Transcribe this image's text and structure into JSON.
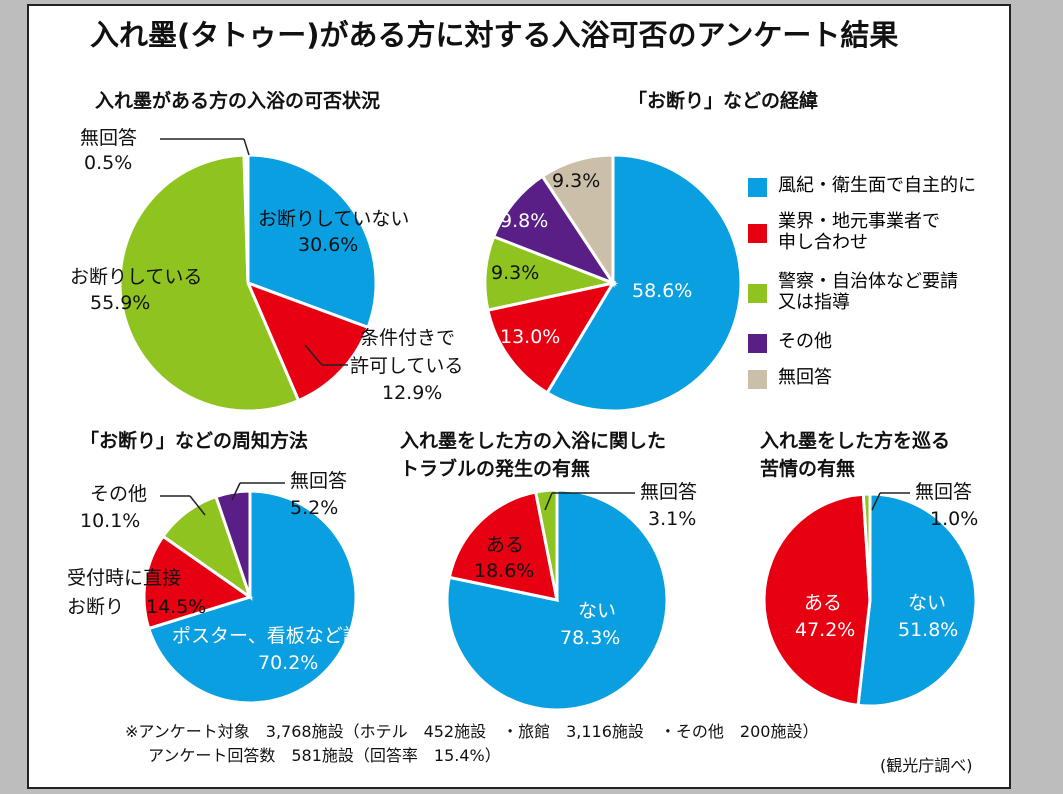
{
  "title": "入れ墨(タトゥー)がある方に対する入浴可否のアンケート結果",
  "colors": {
    "blue": "#0a9fe0",
    "red": "#e60012",
    "green": "#8fc31f",
    "purple": "#5a1f86",
    "beige": "#cbbfa9",
    "white": "#ffffff"
  },
  "chart_data": [
    {
      "type": "pie",
      "title": "入れ墨がある方の入浴の可否状況",
      "start": "12 o'clock, clockwise",
      "slices": [
        {
          "label": "お断りしていない",
          "value": 30.6,
          "color": "blue"
        },
        {
          "label": "条件付きで許可している",
          "value": 12.9,
          "color": "red"
        },
        {
          "label": "お断りしている",
          "value": 55.9,
          "color": "green"
        },
        {
          "label": "無回答",
          "value": 0.5,
          "color": "white"
        }
      ],
      "labels": {
        "s0": "お断りしていない",
        "v0": "30.6%",
        "s1a": "条件付きで",
        "s1b": "許可している",
        "v1": "12.9%",
        "s2": "お断りしている",
        "v2": "55.9%",
        "s3": "無回答",
        "v3": "0.5%"
      }
    },
    {
      "type": "pie",
      "title": "「お断り」などの経緯",
      "legend": "right",
      "slices": [
        {
          "label": "風紀・衛生面で自主的に",
          "value": 58.6,
          "color": "blue"
        },
        {
          "label": "業界・地元事業者で申し合わせ",
          "value": 13.0,
          "color": "red"
        },
        {
          "label": "警察・自治体など要請又は指導",
          "value": 9.3,
          "color": "green"
        },
        {
          "label": "その他",
          "value": 9.8,
          "color": "purple"
        },
        {
          "label": "無回答",
          "value": 9.3,
          "color": "beige"
        }
      ],
      "labels": {
        "v0": "58.6%",
        "v1": "13.0%",
        "v2": "9.3%",
        "v3": "9.8%",
        "v4": "9.3%"
      },
      "legend_items": [
        {
          "a": "風紀・衛生面で自主的に",
          "b": ""
        },
        {
          "a": "業界・地元事業者で",
          "b": "申し合わせ"
        },
        {
          "a": "警察・自治体など要請",
          "b": "又は指導"
        },
        {
          "a": "その他",
          "b": ""
        },
        {
          "a": "無回答",
          "b": ""
        }
      ]
    },
    {
      "type": "pie",
      "title": "「お断り」などの周知方法",
      "slices": [
        {
          "label": "ポスター、看板など設置",
          "value": 70.2,
          "color": "blue"
        },
        {
          "label": "受付時に直接お断り",
          "value": 14.5,
          "color": "red"
        },
        {
          "label": "その他",
          "value": 10.1,
          "color": "green"
        },
        {
          "label": "無回答",
          "value": 5.2,
          "color": "purple"
        }
      ],
      "labels": {
        "s0": "ポスター、看板など設置",
        "v0": "70.2%",
        "s1a": "受付時に直接",
        "s1b": "お断り",
        "v1": "14.5%",
        "s2": "その他",
        "v2": "10.1%",
        "s3": "無回答",
        "v3": "5.2%"
      }
    },
    {
      "type": "pie",
      "title": "入れ墨をした方の入浴に関したトラブルの発生の有無",
      "title_lines": [
        "入れ墨をした方の入浴に関した",
        "トラブルの発生の有無"
      ],
      "slices": [
        {
          "label": "ない",
          "value": 78.3,
          "color": "blue"
        },
        {
          "label": "ある",
          "value": 18.6,
          "color": "red"
        },
        {
          "label": "無回答",
          "value": 3.1,
          "color": "green"
        }
      ],
      "labels": {
        "s0": "ない",
        "v0": "78.3%",
        "s1": "ある",
        "v1": "18.6%",
        "s2": "無回答",
        "v2": "3.1%"
      }
    },
    {
      "type": "pie",
      "title": "入れ墨をした方を巡る苦情の有無",
      "title_lines": [
        "入れ墨をした方を巡る",
        "苦情の有無"
      ],
      "slices": [
        {
          "label": "ない",
          "value": 51.8,
          "color": "blue"
        },
        {
          "label": "ある",
          "value": 47.2,
          "color": "red"
        },
        {
          "label": "無回答",
          "value": 1.0,
          "color": "green"
        }
      ],
      "labels": {
        "s0": "ない",
        "v0": "51.8%",
        "s1": "ある",
        "v1": "47.2%",
        "s2": "無回答",
        "v2": "1.0%"
      }
    }
  ],
  "footer": {
    "line1": "※アンケート対象　3,768施設（ホテル　452施設　・旅館　3,116施設　・その他　200施設）",
    "line2": "アンケート回答数　581施設（回答率　15.4%）",
    "source": "(観光庁調べ)"
  }
}
